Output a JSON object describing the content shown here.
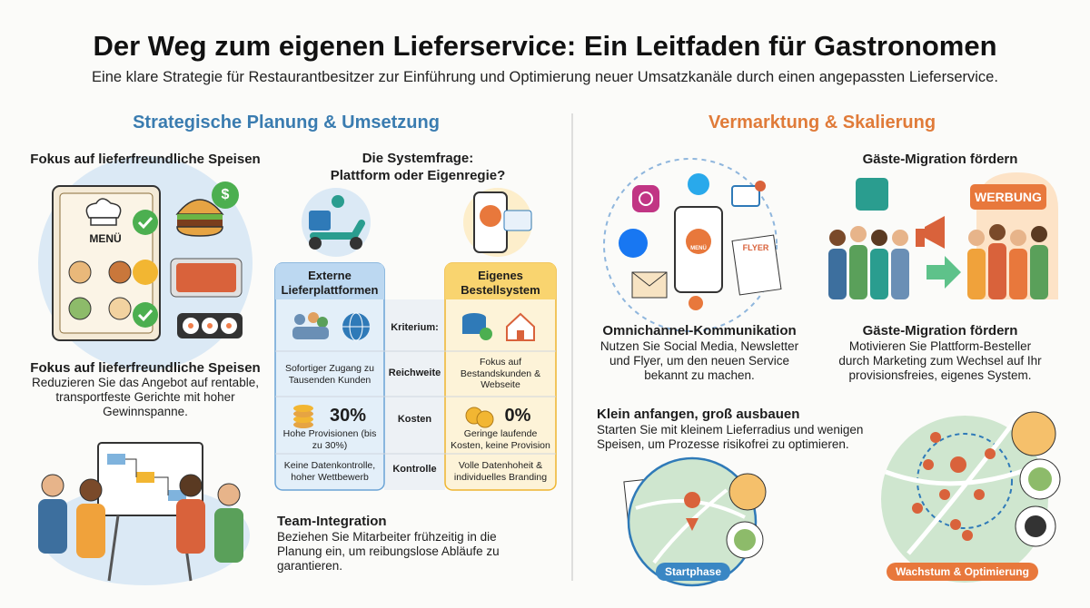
{
  "header": {
    "title": "Der Weg zum eigenen Lieferservice: Ein Leitfaden für Gastronomen",
    "subtitle": "Eine klare Strategie für Restaurantbesitzer zur Einführung und Optimierung neuer Umsatzkanäle durch einen angepassten Lieferservice."
  },
  "left": {
    "heading": "Strategische Planung & Umsetzung",
    "food": {
      "top_heading": "Fokus auf lieferfreundliche Speisen",
      "menu_label": "MENÜ",
      "dollar": "$",
      "heading": "Fokus auf lieferfreundliche Speisen",
      "text": "Reduzieren Sie das Angebot auf rentable, transportfeste Gerichte mit hoher Gewinnspanne."
    },
    "system": {
      "question": [
        "Die Systemfrage:",
        "Plattform oder Eigenregie?"
      ],
      "phone_label": "MENÜ",
      "platform_title": "Externe Lieferplattformen",
      "criterion_label": "Kriterium:",
      "own_title": "Eigenes Bestellsystem",
      "rows": [
        {
          "criterion": "Reichweite",
          "platform": "Sofortiger Zugang zu Tausenden Kunden",
          "own": "Fokus auf Bestandskunden & Webseite"
        },
        {
          "criterion": "Kosten",
          "platform_figure": "30%",
          "platform": "Hohe Provisionen (bis zu 30%)",
          "own_figure": "0%",
          "own": "Geringe laufende Kosten, keine Provision"
        },
        {
          "criterion": "Kontrolle",
          "platform": "Keine Datenkontrolle, hoher Wettbewerb",
          "own": "Volle Datenhoheit & individuelles Branding"
        }
      ]
    },
    "team": {
      "heading": "Team-Integration",
      "text": "Beziehen Sie Mitarbeiter frühzeitig in die Planung ein, um reibungslose Abläufe zu garantieren."
    }
  },
  "right": {
    "heading": "Vermarktung & Skalierung",
    "omni": {
      "phone_label": "MENÜ",
      "flyer_label": "FLYER",
      "heading": "Omnichannel-Kommunikation",
      "text": "Nutzen Sie Social Media, Newsletter und Flyer, um den neuen Service bekannt zu machen."
    },
    "migration": {
      "top_heading": "Gäste-Migration fördern",
      "ad_label": "WERBUNG",
      "heading": "Gäste-Migration fördern",
      "text": "Motivieren Sie Plattform-Besteller durch Marketing zum Wechsel auf Ihr provisionsfreies, eigenes System."
    },
    "scale": {
      "heading": "Klein anfangen, groß ausbauen",
      "text": "Starten Sie mit kleinem Lieferradius und wenigen Speisen, um Prozesse risikofrei zu optimieren.",
      "start_label": "Startphase",
      "growth_label": "Wachstum & Optimierung"
    }
  }
}
